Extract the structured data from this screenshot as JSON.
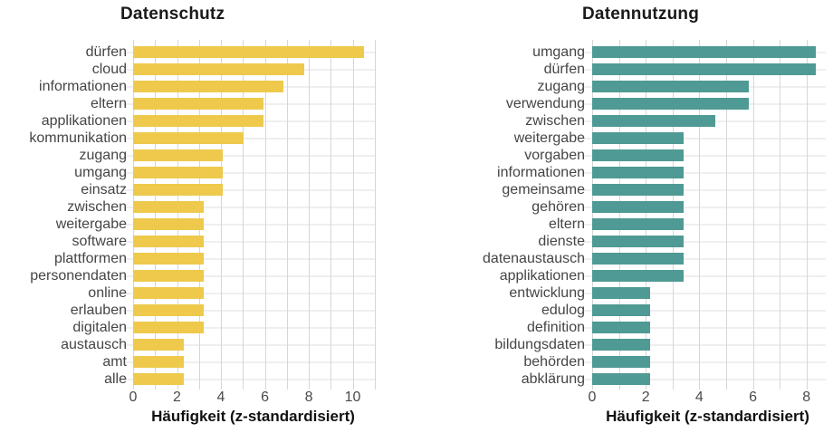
{
  "figure": {
    "background": "#FFFFFF"
  },
  "colors": {
    "bar_yellow": "#EEC94B",
    "bar_teal": "#4F9A94",
    "grid_vertical": "#D6D6D6",
    "grid_horizontal": "#EFEFEF",
    "title_text": "#1A1A1A",
    "category_label_text": "#454545",
    "tick_label_text": "#4A4A4A",
    "axis_title_text": "#111111"
  },
  "chart_data": [
    {
      "type": "bar",
      "orientation": "horizontal",
      "title": "Datenschutz",
      "xlabel": "Häufigkeit (z-standardisiert)",
      "bar_color": "#EEC94B",
      "grid": "on",
      "legend": "none",
      "x_ticks": [
        0,
        2,
        4,
        6,
        8,
        10
      ],
      "xlim": [
        0,
        11.05
      ],
      "categories": [
        "dürfen",
        "cloud",
        "informationen",
        "eltern",
        "applikationen",
        "kommunikation",
        "zugang",
        "umgang",
        "einsatz",
        "zwischen",
        "weitergabe",
        "software",
        "plattformen",
        "personendaten",
        "online",
        "erlauben",
        "digitalen",
        "austausch",
        "amt",
        "alle"
      ],
      "values": [
        10.5,
        7.8,
        6.85,
        5.95,
        5.95,
        5.05,
        4.1,
        4.1,
        4.1,
        3.2,
        3.2,
        3.2,
        3.2,
        3.2,
        3.2,
        3.2,
        3.2,
        2.3,
        2.3,
        2.3
      ]
    },
    {
      "type": "bar",
      "orientation": "horizontal",
      "title": "Datennutzung",
      "xlabel": "Häufigkeit (z-standardisiert)",
      "bar_color": "#4F9A94",
      "grid": "on",
      "legend": "none",
      "x_ticks": [
        0,
        2,
        4,
        6,
        8
      ],
      "xlim": [
        0,
        8.72
      ],
      "categories": [
        "umgang",
        "dürfen",
        "zugang",
        "verwendung",
        "zwischen",
        "weitergabe",
        "vorgaben",
        "informationen",
        "gemeinsame",
        "gehören",
        "eltern",
        "dienste",
        "datenaustausch",
        "applikationen",
        "entwicklung",
        "edulog",
        "definition",
        "bildungsdaten",
        "behörden",
        "abklärung"
      ],
      "values": [
        8.35,
        8.35,
        5.85,
        5.85,
        4.6,
        3.4,
        3.4,
        3.4,
        3.4,
        3.4,
        3.4,
        3.4,
        3.4,
        3.4,
        2.15,
        2.15,
        2.15,
        2.15,
        2.15,
        2.15
      ]
    }
  ]
}
